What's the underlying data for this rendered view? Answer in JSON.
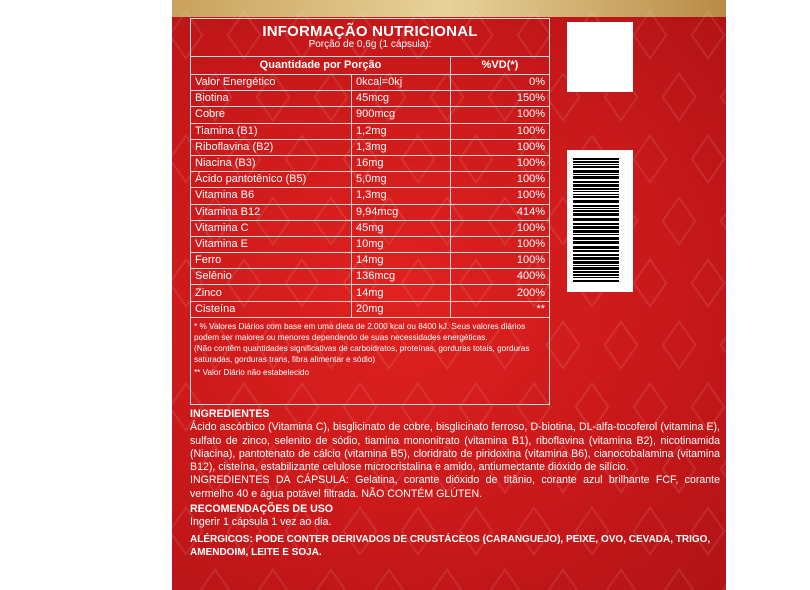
{
  "title": "INFORMAÇÃO NUTRICIONAL",
  "portion": "Porção de 0,6g (1 cápsula):",
  "table": {
    "headers": [
      "Quantidade por Porção",
      "%VD(*)"
    ],
    "rows": [
      [
        "Valor Energético",
        "0kcal=0kj",
        "0%"
      ],
      [
        "Biotina",
        "45mcg",
        "150%"
      ],
      [
        "Cobre",
        "900mcg",
        "100%"
      ],
      [
        "Tiamina (B1)",
        "1,2mg",
        "100%"
      ],
      [
        "Riboflavina (B2)",
        "1,3mg",
        "100%"
      ],
      [
        "Niacina (B3)",
        "16mg",
        "100%"
      ],
      [
        "Ácido pantotênico (B5)",
        "5,0mg",
        "100%"
      ],
      [
        "Vitamina B6",
        "1,3mg",
        "100%"
      ],
      [
        "Vitamina B12",
        "9,94mcg",
        "414%"
      ],
      [
        "Vitamina C",
        "45mg",
        "100%"
      ],
      [
        "Vitamina E",
        "10mg",
        "100%"
      ],
      [
        "Ferro",
        "14mg",
        "100%"
      ],
      [
        "Selênio",
        "136mcg",
        "400%"
      ],
      [
        "Zinco",
        "14mg",
        "200%"
      ],
      [
        "Cisteína",
        "20mg",
        "**"
      ]
    ]
  },
  "notes": [
    "* % Valores Diários com base em uma dieta de 2.000 kcal ou 8400 kJ. Seus valores diários podem ser maiores ou menores dependendo de suas necessidades energéticas.",
    "(Não contêm quantidades significativas de carboidratos, proteínas, gorduras totais, gorduras saturadas, gorduras trans, fibra alimentar e sódio)",
    "** Valor Diário não estabelecido"
  ],
  "ingredients": {
    "heading": "INGREDIENTES",
    "text": "Ácido ascórbico (Vitamina C), bisglicinato de cobre, bisglicinato ferroso, D-biotina, DL-alfa-tocoferol (vitamina E), sulfato de zinco, selenito de sódio, tiamina mononitrato (vitamina B1), riboflavina (vitamina B2), nicotinamida (Niacina), pantotenato de cálcio (vitamina B5), cloridrato de piridoxina (vitamina B6), cianocobalamina (vitamina B12), cisteína, estabilizante celulose microcristalina e amido, antiumectante dióxido de silício.",
    "capsule": "INGREDIENTES DA CÁPSULA: Gelatina, corante dióxido de titânio, corante azul brilhante FCF, corante vermelho 40 e água potável filtrada. NÃO CONTÉM GLÚTEN."
  },
  "usage": {
    "heading": "RECOMENDAÇÕES DE USO",
    "text": "Ingerir 1 cápsula 1 vez ao dia."
  },
  "allergens": "ALÉRGICOS: PODE CONTER DERIVADOS DE CRUSTÁCEOS (CARANGUEJO), PEIXE, OVO, CEVADA, TRIGO, AMENDOIM, LEITE E SOJA.",
  "colors": {
    "background": "#c8181a",
    "gold": "#e8d29a"
  }
}
